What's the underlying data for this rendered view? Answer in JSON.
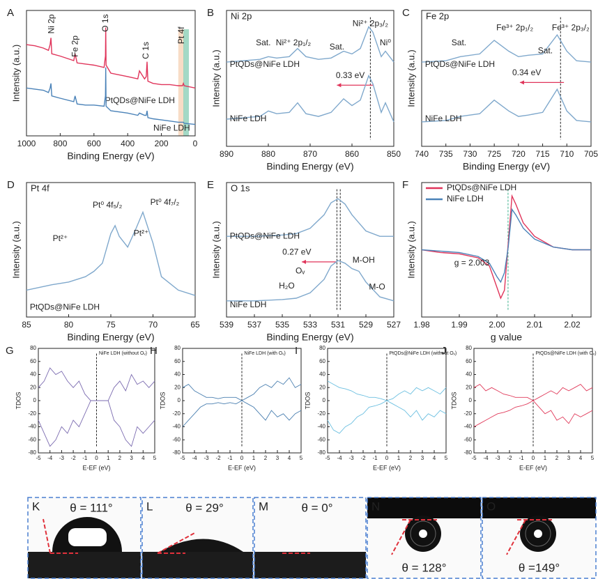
{
  "chart_data": [
    {
      "type": "line",
      "label": "A",
      "xlabel": "Binding Energy (eV)",
      "ylabel": "Intensity (a.u.)",
      "xlim": [
        1000,
        0
      ],
      "xticks": [
        1000,
        800,
        600,
        400,
        200,
        0
      ],
      "ylim": [
        0,
        110
      ],
      "x": [
        1000,
        950,
        900,
        870,
        860,
        855,
        850,
        800,
        720,
        712,
        700,
        650,
        600,
        540,
        532,
        530,
        528,
        500,
        400,
        340,
        330,
        300,
        290,
        285,
        280,
        250,
        200,
        150,
        100,
        75,
        70,
        65,
        0
      ],
      "series": [
        {
          "name": "PtQDs@NiFe LDH",
          "color": "#e0345a",
          "values": [
            80,
            79,
            77,
            75,
            80,
            86,
            72,
            70,
            66,
            72,
            64,
            63,
            62,
            60,
            70,
            95,
            62,
            55,
            52,
            50,
            57,
            50,
            52,
            65,
            48,
            46,
            45,
            45,
            44,
            44,
            46,
            44,
            42
          ]
        },
        {
          "name": "NiFe LDH",
          "color": "#4a82b8",
          "values": [
            42,
            41,
            40,
            38,
            42,
            46,
            35,
            33,
            30,
            35,
            28,
            27,
            27,
            26,
            35,
            60,
            26,
            22,
            20,
            18,
            20,
            18,
            18,
            22,
            16,
            15,
            14,
            13,
            12,
            12,
            12,
            11,
            10
          ]
        }
      ],
      "annotations": [
        {
          "text": "Ni 2p",
          "color": "#222"
        },
        {
          "text": "Fe 2p",
          "color": "#222"
        },
        {
          "text": "O 1s",
          "color": "#222"
        },
        {
          "text": "C 1s",
          "color": "#222"
        },
        {
          "text": "Pt 4f",
          "color": "#222"
        }
      ]
    },
    {
      "type": "line",
      "label": "B",
      "subtitle": "Ni 2p",
      "xlabel": "Binding Energy (eV)",
      "ylabel": "Intensity (a.u.)",
      "xlim": [
        890,
        850
      ],
      "xticks": [
        890,
        880,
        870,
        860,
        850
      ],
      "ylim": [
        0,
        100
      ],
      "x": [
        890,
        886,
        882,
        880,
        878,
        875,
        873,
        871,
        868,
        865,
        862,
        860,
        858,
        856,
        855,
        853,
        852,
        850
      ],
      "series": [
        {
          "name": "PtQDs@NiFe LDH",
          "color": "#7fa8cc",
          "values": [
            62,
            63,
            64,
            66,
            65,
            66,
            72,
            66,
            64,
            65,
            70,
            68,
            72,
            88,
            84,
            66,
            70,
            62
          ]
        },
        {
          "name": "NiFe LDH",
          "color": "#7fa8cc",
          "values": [
            20,
            21,
            22,
            26,
            24,
            25,
            32,
            24,
            22,
            25,
            35,
            30,
            34,
            52,
            46,
            25,
            32,
            18
          ]
        }
      ],
      "annotations": [
        {
          "text": "Sat.",
          "color": "#4a82b8"
        },
        {
          "text": "Ni²⁺ 2p₁/₂",
          "color": "#2e9e6e"
        },
        {
          "text": "Sat.",
          "color": "#4a82b8"
        },
        {
          "text": "Ni²⁺ 2p₃/₂",
          "color": "#2e9e6e"
        },
        {
          "text": "Ni⁰",
          "color": "#c0407a"
        },
        {
          "text": "0.33 eV",
          "color": "#e0345a"
        }
      ]
    },
    {
      "type": "line",
      "label": "C",
      "subtitle": "Fe 2p",
      "xlabel": "Binding Energy (eV)",
      "ylabel": "Intensity (a.u.)",
      "xlim": [
        740,
        705
      ],
      "xticks": [
        740,
        735,
        730,
        725,
        720,
        715,
        710,
        705
      ],
      "ylim": [
        0,
        100
      ],
      "x": [
        740,
        735,
        732,
        728,
        725,
        722,
        720,
        718,
        715,
        712,
        710,
        708,
        705
      ],
      "series": [
        {
          "name": "PtQDs@NiFe LDH",
          "color": "#7fa8cc",
          "values": [
            62,
            63,
            66,
            68,
            78,
            70,
            66,
            67,
            68,
            82,
            70,
            63,
            62
          ]
        },
        {
          "name": "NiFe LDH",
          "color": "#7fa8cc",
          "values": [
            18,
            19,
            22,
            24,
            34,
            26,
            22,
            23,
            25,
            42,
            26,
            19,
            18
          ]
        }
      ],
      "annotations": [
        {
          "text": "Sat.",
          "color": "#4a82b8"
        },
        {
          "text": "Fe³⁺ 2p₁/₂",
          "color": "#2e9e6e"
        },
        {
          "text": "Sat.",
          "color": "#4a82b8"
        },
        {
          "text": "Fe³⁺ 2p₃/₂",
          "color": "#2e9e6e"
        },
        {
          "text": "0.34 eV",
          "color": "#e0345a"
        }
      ]
    },
    {
      "type": "line",
      "label": "D",
      "subtitle": "Pt 4f",
      "xlabel": "Binding Energy (eV)",
      "ylabel": "Intensity (a.u.)",
      "xlim": [
        85,
        65
      ],
      "xticks": [
        85,
        80,
        75,
        70,
        65
      ],
      "ylim": [
        0,
        100
      ],
      "x": [
        85,
        82,
        80,
        78,
        77,
        76,
        75,
        74.5,
        74,
        73,
        72,
        71.2,
        70,
        69,
        67,
        65
      ],
      "series": [
        {
          "name": "PtQDs@NiFe LDH",
          "color": "#7fa8cc",
          "values": [
            20,
            24,
            26,
            30,
            34,
            40,
            62,
            68,
            60,
            52,
            66,
            78,
            55,
            30,
            20,
            16
          ]
        }
      ],
      "annotations": [
        {
          "text": "Pt²⁺",
          "color": "#4a82b8"
        },
        {
          "text": "Pt⁰ 4f₅/₂",
          "color": "#2e9e6e"
        },
        {
          "text": "Pt²⁺",
          "color": "#4a82b8"
        },
        {
          "text": "Pt⁰ 4f₇/₂",
          "color": "#2e9e6e"
        }
      ]
    },
    {
      "type": "line",
      "label": "E",
      "subtitle": "O 1s",
      "xlabel": "Binding Energy (eV)",
      "ylabel": "Intensity (a.u.)",
      "xlim": [
        539,
        527
      ],
      "xticks": [
        539,
        537,
        535,
        533,
        531,
        529,
        527
      ],
      "ylim": [
        0,
        100
      ],
      "x": [
        539,
        537,
        535,
        534,
        533,
        532,
        531.5,
        531,
        530.5,
        530,
        529.5,
        529,
        528,
        527
      ],
      "series": [
        {
          "name": "PtQDs@NiFe LDH",
          "color": "#7fa8cc",
          "values": [
            60,
            60,
            61,
            62,
            66,
            76,
            85,
            88,
            84,
            76,
            70,
            64,
            60,
            60
          ]
        },
        {
          "name": "NiFe LDH",
          "color": "#7fa8cc",
          "values": [
            12,
            12,
            13,
            14,
            18,
            28,
            38,
            42,
            40,
            36,
            34,
            26,
            15,
            12
          ]
        }
      ],
      "annotations": [
        {
          "text": "0.27 eV",
          "color": "#e0345a"
        },
        {
          "text": "Oᵥ",
          "color": "#4a82b8"
        },
        {
          "text": "H₂O",
          "color": "#d4900a"
        },
        {
          "text": "M-OH",
          "color": "#4a82b8"
        },
        {
          "text": "M-O",
          "color": "#2e9e6e"
        }
      ]
    },
    {
      "type": "line",
      "label": "F",
      "xlabel": "g value",
      "ylabel": "Intensity (a.u.)",
      "legend": "top-left",
      "xlim": [
        1.98,
        2.025
      ],
      "xticks": [
        1.98,
        1.99,
        {
          "value": 2,
          "label": "2.00"
        },
        2.01,
        2.02
      ],
      "ylim": [
        0,
        100
      ],
      "x": [
        1.98,
        1.985,
        1.99,
        1.995,
        1.998,
        2.0,
        2.001,
        2.002,
        2.003,
        2.004,
        2.005,
        2.007,
        2.01,
        2.015,
        2.02,
        2.025
      ],
      "series": [
        {
          "name": "PtQDs@NiFe LDH",
          "color": "#e0345a",
          "values": [
            50,
            48,
            47,
            44,
            38,
            22,
            14,
            20,
            55,
            90,
            84,
            70,
            60,
            52,
            50,
            50
          ]
        },
        {
          "name": "NiFe LDH",
          "color": "#4a82b8",
          "values": [
            50,
            49,
            48,
            45,
            40,
            30,
            26,
            33,
            52,
            80,
            76,
            66,
            58,
            52,
            50,
            50
          ]
        }
      ],
      "annotations": [
        {
          "text": "g = 2.003",
          "color": "#222"
        }
      ]
    },
    {
      "type": "line",
      "label": "G",
      "subtitle": "NiFe LDH (without Oᵥ)",
      "xlabel": "E-EF (eV)",
      "ylabel": "TDOS",
      "xlim": [
        -5,
        5
      ],
      "xticks": [
        -5,
        -4,
        -3,
        -2,
        -1,
        0,
        1,
        2,
        3,
        4,
        5
      ],
      "ylim": [
        -80,
        80
      ],
      "yticks": [
        -80,
        -60,
        -40,
        -20,
        0,
        20,
        40,
        60,
        80
      ],
      "x": [
        -5,
        -4.5,
        -4,
        -3.5,
        -3,
        -2.5,
        -2,
        -1.5,
        -1,
        -0.5,
        0,
        0.5,
        1,
        1.5,
        2,
        2.5,
        3,
        3.5,
        4,
        4.5,
        5
      ],
      "series": [
        {
          "color": "#7b6bb0",
          "values": [
            20,
            30,
            50,
            40,
            45,
            30,
            20,
            30,
            10,
            0,
            0,
            0,
            0,
            20,
            30,
            15,
            40,
            25,
            30,
            20,
            30
          ]
        },
        {
          "color": "#7b6bb0",
          "values": [
            -30,
            -50,
            -70,
            -60,
            -40,
            -50,
            -30,
            -40,
            -20,
            0,
            0,
            0,
            0,
            -30,
            -40,
            -60,
            -70,
            -40,
            -50,
            -40,
            -30
          ]
        }
      ]
    },
    {
      "type": "line",
      "label": "H",
      "subtitle": "NiFe LDH (with Oᵥ)",
      "xlabel": "E-EF (eV)",
      "ylabel": "TDOS",
      "xlim": [
        -5,
        5
      ],
      "xticks": [
        -5,
        -4,
        -3,
        -2,
        -1,
        0,
        1,
        2,
        3,
        4,
        5
      ],
      "ylim": [
        -80,
        80
      ],
      "yticks": [
        -80,
        -60,
        -40,
        -20,
        0,
        20,
        40,
        60,
        80
      ],
      "x": [
        -5,
        -4.5,
        -4,
        -3.5,
        -3,
        -2.5,
        -2,
        -1.5,
        -1,
        -0.5,
        0,
        0.5,
        1,
        1.5,
        2,
        2.5,
        3,
        3.5,
        4,
        4.5,
        5
      ],
      "series": [
        {
          "color": "#4a7fb0",
          "values": [
            20,
            25,
            15,
            10,
            5,
            5,
            3,
            5,
            5,
            5,
            0,
            5,
            10,
            20,
            25,
            20,
            30,
            25,
            35,
            20,
            25
          ]
        },
        {
          "color": "#4a7fb0",
          "values": [
            -40,
            -30,
            -20,
            -10,
            -5,
            -5,
            -3,
            -5,
            -3,
            -5,
            0,
            -5,
            -10,
            -20,
            -30,
            -15,
            -25,
            -20,
            -30,
            -20,
            -15
          ]
        }
      ]
    },
    {
      "type": "line",
      "label": "I",
      "subtitle": "PtQDs@NiFe LDH (without Oᵥ)",
      "xlabel": "E-EF (eV)",
      "ylabel": "TDOS",
      "xlim": [
        -5,
        5
      ],
      "xticks": [
        -5,
        -4,
        -3,
        -2,
        -1,
        0,
        1,
        2,
        3,
        4,
        5
      ],
      "ylim": [
        -80,
        80
      ],
      "yticks": [
        -80,
        -60,
        -40,
        -20,
        0,
        20,
        40,
        60,
        80
      ],
      "x": [
        -5,
        -4.5,
        -4,
        -3.5,
        -3,
        -2.5,
        -2,
        -1.5,
        -1,
        -0.5,
        0,
        0.5,
        1,
        1.5,
        2,
        2.5,
        3,
        3.5,
        4,
        4.5,
        5
      ],
      "series": [
        {
          "color": "#6bbfe0",
          "values": [
            30,
            25,
            20,
            18,
            15,
            10,
            8,
            5,
            5,
            3,
            0,
            3,
            10,
            15,
            10,
            20,
            15,
            20,
            15,
            10,
            20
          ]
        },
        {
          "color": "#6bbfe0",
          "values": [
            -30,
            -45,
            -50,
            -40,
            -35,
            -25,
            -20,
            -10,
            -8,
            -5,
            0,
            -5,
            -10,
            -15,
            -25,
            -15,
            -30,
            -20,
            -25,
            -15,
            -20
          ]
        }
      ]
    },
    {
      "type": "line",
      "label": "J",
      "subtitle": "PtQDs@NiFe LDH (with Oᵥ)",
      "xlabel": "E-EF (eV)",
      "ylabel": "TDOS",
      "xlim": [
        -5,
        5
      ],
      "xticks": [
        -5,
        -4,
        -3,
        -2,
        -1,
        0,
        1,
        2,
        3,
        4,
        5
      ],
      "ylim": [
        -80,
        80
      ],
      "yticks": [
        -80,
        -60,
        -40,
        -20,
        0,
        20,
        40,
        60,
        80
      ],
      "x": [
        -5,
        -4.5,
        -4,
        -3.5,
        -3,
        -2.5,
        -2,
        -1.5,
        -1,
        -0.5,
        0,
        0.5,
        1,
        1.5,
        2,
        2.5,
        3,
        3.5,
        4,
        4.5,
        5
      ],
      "series": [
        {
          "color": "#e03a5a",
          "values": [
            20,
            25,
            15,
            20,
            15,
            10,
            8,
            5,
            5,
            5,
            0,
            5,
            10,
            15,
            10,
            20,
            15,
            20,
            25,
            15,
            20
          ]
        },
        {
          "color": "#e03a5a",
          "values": [
            -40,
            -35,
            -30,
            -25,
            -20,
            -18,
            -15,
            -10,
            -8,
            -5,
            0,
            -10,
            -20,
            -15,
            -30,
            -25,
            -35,
            -20,
            -25,
            -20,
            -15
          ]
        }
      ]
    }
  ],
  "photos": [
    {
      "label": "K",
      "caption": "θ = 111°"
    },
    {
      "label": "L",
      "caption": "θ = 29°"
    },
    {
      "label": "M",
      "caption": "θ = 0°"
    },
    {
      "label": "N",
      "caption": "θ = 128°"
    },
    {
      "label": "O",
      "caption": "θ =149°"
    }
  ]
}
